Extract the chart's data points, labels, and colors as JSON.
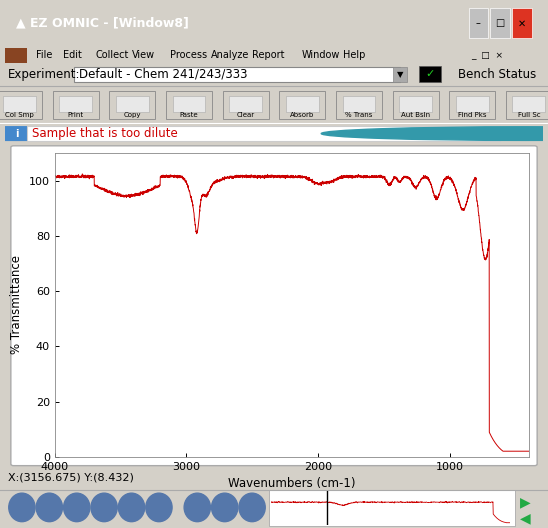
{
  "title": "EZ OMNIC - [Window8]",
  "experiment_label": "Experiment:",
  "experiment_value": "Default - Chem 241/243/333",
  "spectrum_title": "Sample that is too dilute",
  "xlabel": "Wavenumbers (cm-1)",
  "ylabel": "% Transmittance",
  "status_text": "X:(3156.675) Y:(8.432)",
  "menu_items": [
    "File",
    "Edit",
    "Collect",
    "View",
    "Process",
    "Analyze",
    "Report",
    "Window",
    "Help"
  ],
  "toolbar_items": [
    "Col Smp",
    "Print",
    "Copy",
    "Paste",
    "Clear",
    "Absorb",
    "% Trans",
    "Aut Bsln",
    "Find Pks",
    "Full Sc"
  ],
  "xlim": [
    4000,
    400
  ],
  "ylim": [
    0,
    110
  ],
  "yticks": [
    0,
    20,
    40,
    60,
    80,
    100
  ],
  "xticks": [
    4000,
    3000,
    2000,
    1000
  ],
  "line_color": "#cc0000",
  "bg_color": "#d4d0c8",
  "plot_bg": "#ffffff",
  "titlebar_color": "#2255cc",
  "menubar_color": "#d4d0c8",
  "statusbar_color": "#b8c8d8",
  "spectrum_label_color": "#cc0000",
  "figsize": [
    5.48,
    5.28
  ],
  "dpi": 100
}
